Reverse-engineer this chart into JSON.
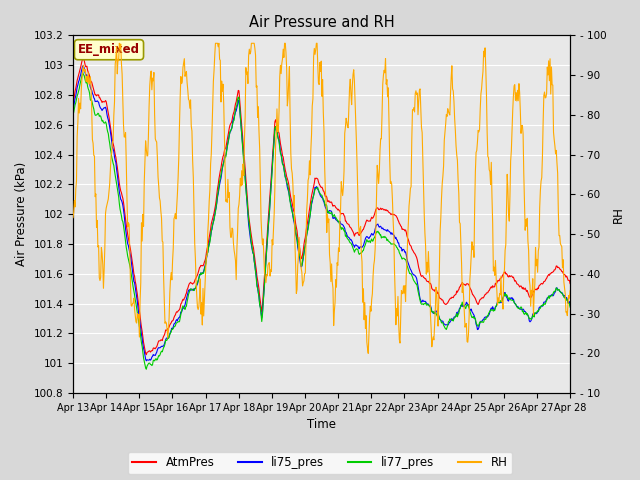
{
  "title": "Air Pressure and RH",
  "xlabel": "Time",
  "ylabel_left": "Air Pressure (kPa)",
  "ylabel_right": "RH",
  "ylim_left": [
    100.8,
    103.2
  ],
  "ylim_right": [
    10,
    100
  ],
  "yticks_left": [
    100.8,
    101.0,
    101.2,
    101.4,
    101.6,
    101.8,
    102.0,
    102.2,
    102.4,
    102.6,
    102.8,
    103.0,
    103.2
  ],
  "yticks_right": [
    10,
    20,
    30,
    40,
    50,
    60,
    70,
    80,
    90,
    100
  ],
  "xtick_labels": [
    "Apr 13",
    "Apr 14",
    "Apr 15",
    "Apr 16",
    "Apr 17",
    "Apr 18",
    "Apr 19",
    "Apr 20",
    "Apr 21",
    "Apr 22",
    "Apr 23",
    "Apr 24",
    "Apr 25",
    "Apr 26",
    "Apr 27",
    "Apr 28"
  ],
  "annotation_text": "EE_mixed",
  "annotation_bg": "#ffffcc",
  "annotation_border": "#999900",
  "annotation_text_color": "#990000",
  "colors": {
    "AtmPres": "#ff0000",
    "li75_pres": "#0000ff",
    "li77_pres": "#00cc00",
    "RH": "#ffaa00"
  },
  "legend_labels": [
    "AtmPres",
    "li75_pres",
    "li77_pres",
    "RH"
  ],
  "bg_color": "#d8d8d8",
  "plot_bg_color": "#e8e8e8",
  "grid_color": "#ffffff"
}
